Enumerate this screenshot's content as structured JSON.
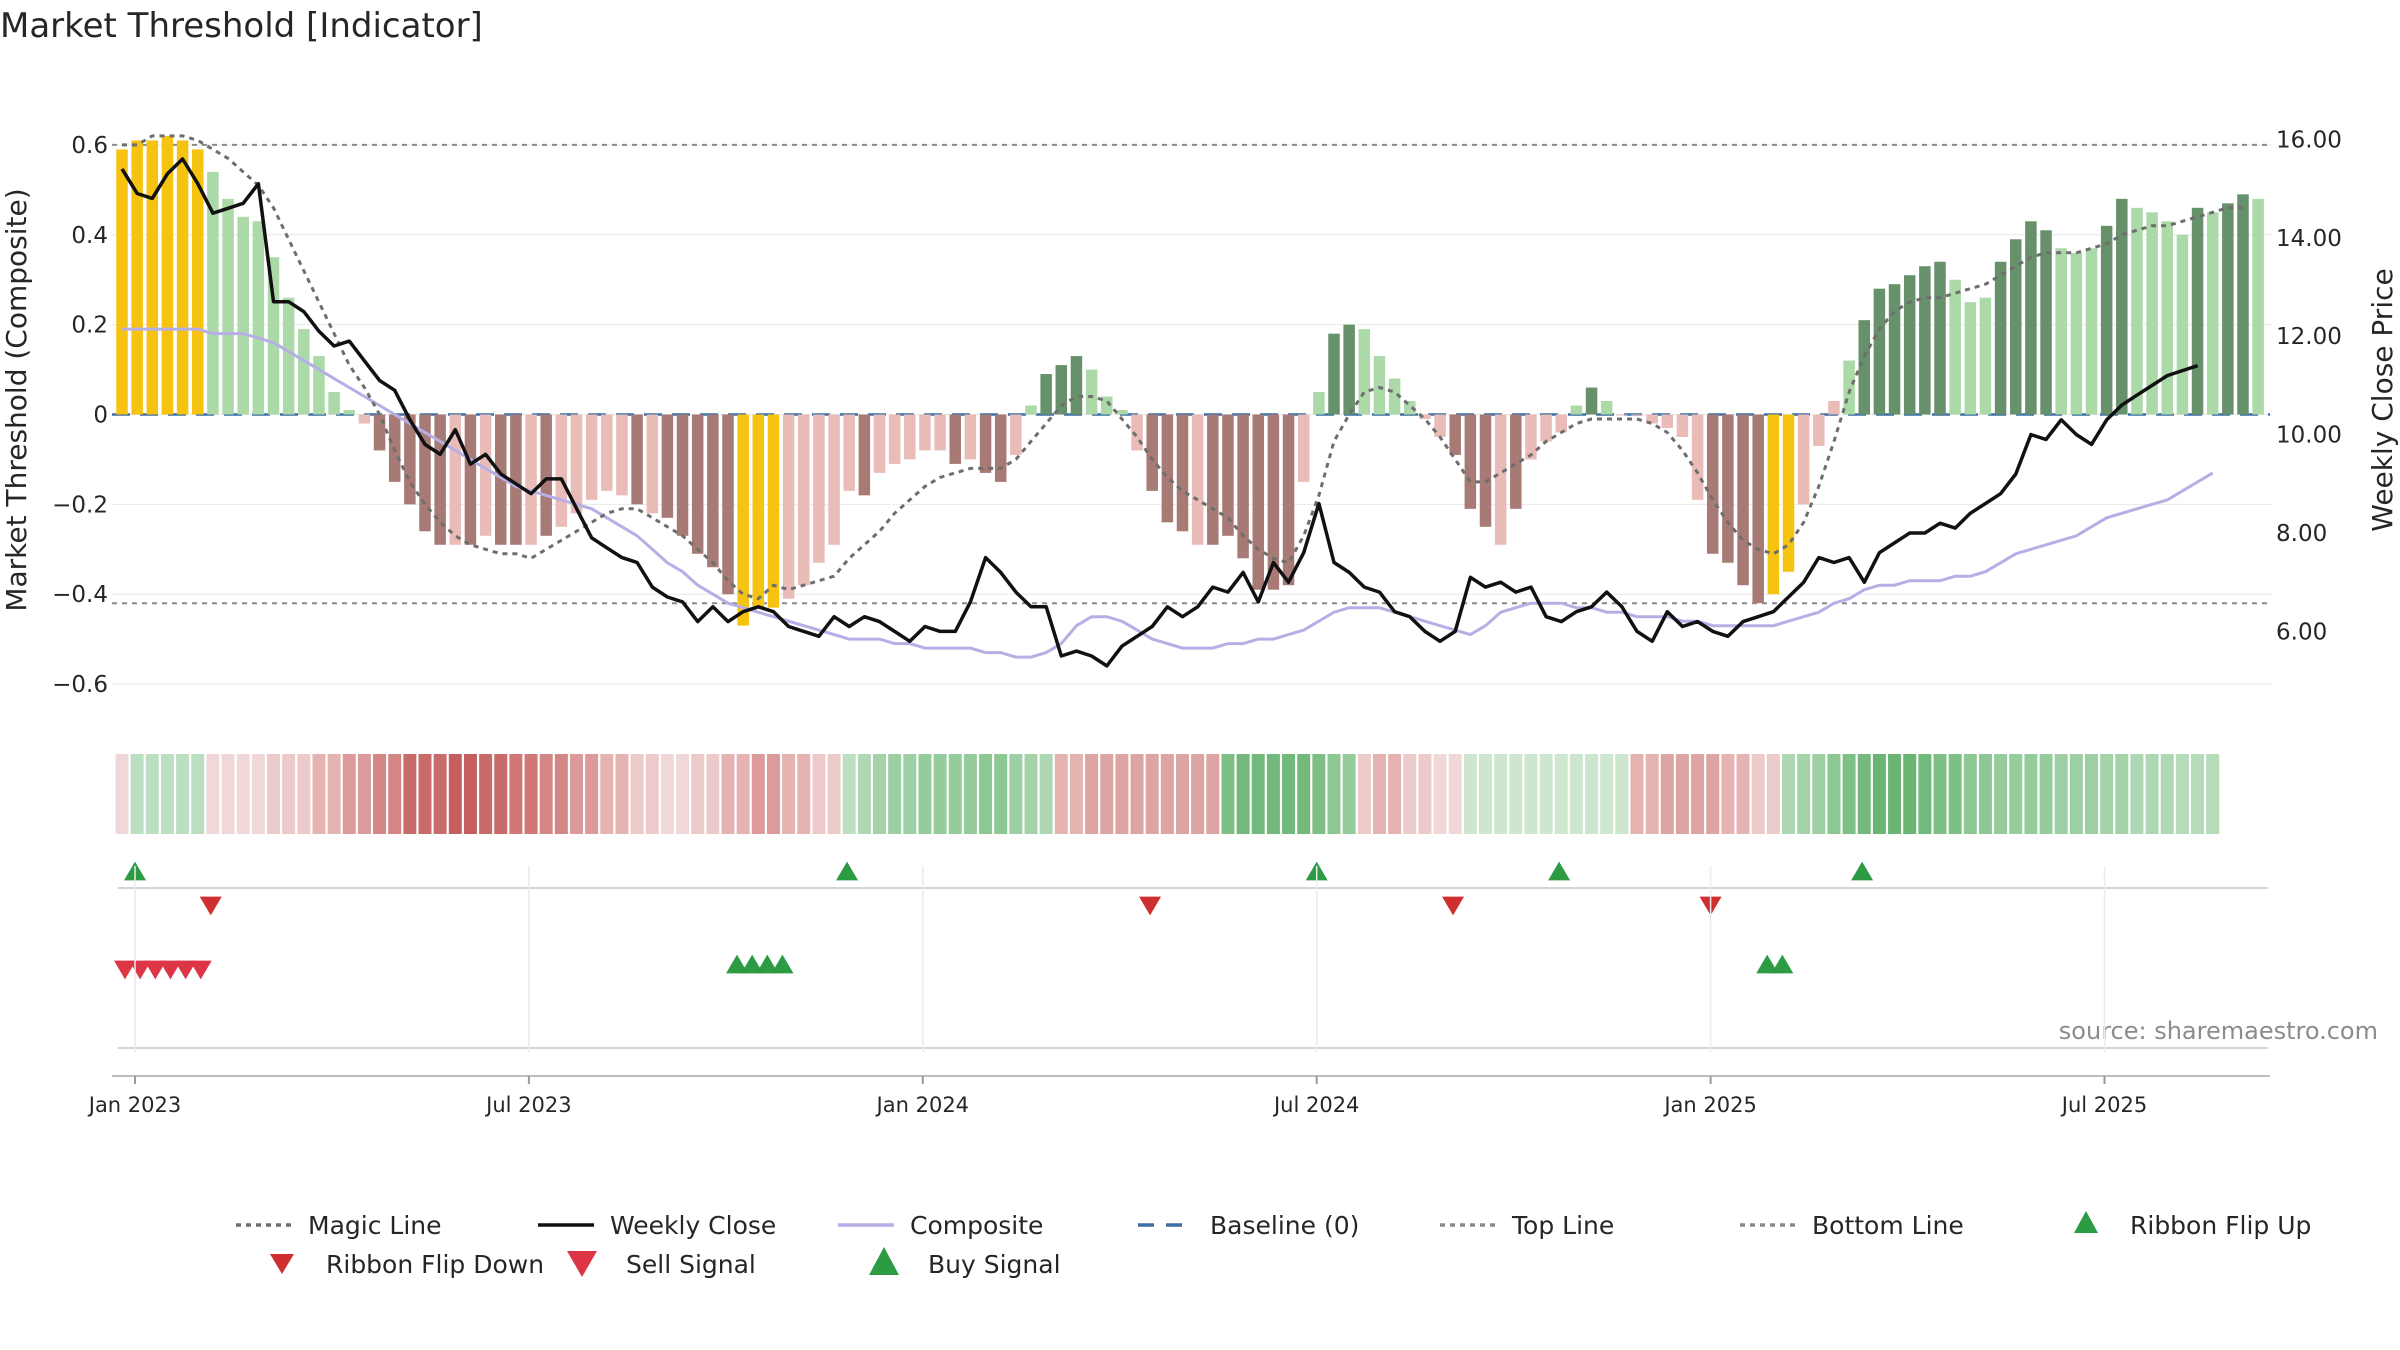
{
  "chart_data": {
    "type": "bar+line",
    "title": "Market Threshold [Indicator]",
    "source": "source: sharemaestro.com",
    "ylabel_left": "Market Threshold (Composite)",
    "ylabel_right": "Weekly Close Price",
    "ylim_left": [
      -0.68,
      0.7
    ],
    "ylim_right": [
      4.2,
      16.8
    ],
    "left_ticks": [
      0.6,
      0.4,
      0.2,
      0,
      -0.2,
      -0.4,
      -0.6
    ],
    "left_tick_labels": [
      "0.6",
      "0.4",
      "0.2",
      "0",
      "−0.2",
      "−0.4",
      "−0.6"
    ],
    "right_ticks": [
      16,
      14,
      12,
      10,
      8,
      6
    ],
    "right_tick_labels": [
      "16.00",
      "14.00",
      "12.00",
      "10.00",
      "8.00",
      "6.00"
    ],
    "x_ticks": [
      0,
      26,
      52,
      78,
      104,
      130
    ],
    "x_tick_labels": [
      "Jan 2023",
      "Jul 2023",
      "Jan 2024",
      "Jul 2024",
      "Jan 2025",
      "Jul 2025"
    ],
    "top_line": 0.6,
    "bottom_line": -0.42,
    "colors": {
      "strong_up": "#66916a",
      "weak_up": "#abd9a8",
      "strong_down": "#a87a76",
      "weak_down": "#e9bcb8",
      "extreme": "#f6c310",
      "close": "#111111",
      "composite": "#b6afe6",
      "magic": "#6e6e6e",
      "baseline": "#3b6fa5",
      "ref": "#8a8a8a",
      "up_marker": "#2c9b44",
      "down_marker": "#cf2f2f",
      "sell_marker": "#dc3545",
      "grid": "#e8e8e8"
    },
    "composite_bars": [
      0.59,
      0.61,
      0.61,
      0.62,
      0.61,
      0.59,
      0.54,
      0.48,
      0.44,
      0.43,
      0.35,
      0.26,
      0.19,
      0.13,
      0.05,
      0.01,
      -0.02,
      -0.08,
      -0.15,
      -0.2,
      -0.26,
      -0.29,
      -0.29,
      -0.29,
      -0.27,
      -0.29,
      -0.29,
      -0.29,
      -0.27,
      -0.25,
      -0.22,
      -0.19,
      -0.17,
      -0.18,
      -0.2,
      -0.22,
      -0.23,
      -0.27,
      -0.31,
      -0.34,
      -0.4,
      -0.47,
      -0.43,
      -0.43,
      -0.41,
      -0.38,
      -0.33,
      -0.29,
      -0.17,
      -0.18,
      -0.13,
      -0.11,
      -0.1,
      -0.08,
      -0.08,
      -0.11,
      -0.1,
      -0.13,
      -0.15,
      -0.09,
      0.02,
      0.09,
      0.11,
      0.13,
      0.1,
      0.04,
      0.01,
      -0.08,
      -0.17,
      -0.24,
      -0.26,
      -0.29,
      -0.29,
      -0.27,
      -0.32,
      -0.39,
      -0.39,
      -0.38,
      -0.15,
      0.05,
      0.18,
      0.2,
      0.19,
      0.13,
      0.08,
      0.03,
      -0.01,
      -0.05,
      -0.09,
      -0.21,
      -0.25,
      -0.29,
      -0.21,
      -0.1,
      -0.06,
      -0.04,
      0.02,
      0.06,
      0.03,
      0.0,
      0.0,
      -0.02,
      -0.03,
      -0.05,
      -0.19,
      -0.31,
      -0.33,
      -0.38,
      -0.42,
      -0.4,
      -0.35,
      -0.2,
      -0.07,
      0.03,
      0.12,
      0.21,
      0.28,
      0.29,
      0.31,
      0.33,
      0.34,
      0.3,
      0.25,
      0.26,
      0.34,
      0.39,
      0.43,
      0.41,
      0.37,
      0.36,
      0.37,
      0.42,
      0.48,
      0.46,
      0.45,
      0.43,
      0.4,
      0.46,
      0.45,
      0.47,
      0.49,
      0.48
    ],
    "bar_colors": [
      "Y",
      "Y",
      "Y",
      "Y",
      "Y",
      "Y",
      "W",
      "W",
      "W",
      "W",
      "W",
      "W",
      "W",
      "W",
      "W",
      "W",
      "w",
      "D",
      "D",
      "D",
      "D",
      "D",
      "w",
      "D",
      "w",
      "D",
      "D",
      "w",
      "D",
      "w",
      "w",
      "w",
      "w",
      "w",
      "D",
      "w",
      "D",
      "D",
      "D",
      "D",
      "D",
      "Y",
      "Y",
      "Y",
      "w",
      "w",
      "w",
      "w",
      "w",
      "D",
      "w",
      "w",
      "w",
      "w",
      "w",
      "D",
      "w",
      "D",
      "D",
      "w",
      "W",
      "U",
      "U",
      "U",
      "W",
      "W",
      "W",
      "w",
      "D",
      "D",
      "D",
      "w",
      "D",
      "D",
      "D",
      "D",
      "D",
      "D",
      "w",
      "W",
      "U",
      "U",
      "W",
      "W",
      "W",
      "W",
      "w",
      "w",
      "D",
      "D",
      "D",
      "w",
      "D",
      "w",
      "w",
      "w",
      "W",
      "U",
      "W",
      "w",
      "w",
      "w",
      "w",
      "w",
      "w",
      "D",
      "D",
      "D",
      "D",
      "Y",
      "Y",
      "w",
      "w",
      "w",
      "W",
      "U",
      "U",
      "U",
      "U",
      "U",
      "U",
      "W",
      "W",
      "W",
      "U",
      "U",
      "U",
      "U",
      "W",
      "W",
      "W",
      "U",
      "U",
      "W",
      "W",
      "W",
      "W",
      "U",
      "W",
      "U",
      "U",
      "W"
    ],
    "weekly_close": [
      15.4,
      14.9,
      14.8,
      15.3,
      15.6,
      15.1,
      14.5,
      14.6,
      14.7,
      15.1,
      12.7,
      12.7,
      12.5,
      12.1,
      11.8,
      11.9,
      11.5,
      11.1,
      10.9,
      10.3,
      9.8,
      9.6,
      10.1,
      9.4,
      9.6,
      9.2,
      9.0,
      8.8,
      9.1,
      9.1,
      8.5,
      7.9,
      7.7,
      7.5,
      7.4,
      6.9,
      6.7,
      6.6,
      6.2,
      6.5,
      6.2,
      6.4,
      6.5,
      6.4,
      6.1,
      6.0,
      5.9,
      6.3,
      6.1,
      6.3,
      6.2,
      6.0,
      5.8,
      6.1,
      6.0,
      6.0,
      6.6,
      7.5,
      7.2,
      6.8,
      6.5,
      6.5,
      5.5,
      5.6,
      5.5,
      5.3,
      5.7,
      5.9,
      6.1,
      6.5,
      6.3,
      6.5,
      6.9,
      6.8,
      7.2,
      6.6,
      7.4,
      7.0,
      7.6,
      8.6,
      7.4,
      7.2,
      6.9,
      6.8,
      6.4,
      6.3,
      6.0,
      5.8,
      6.0,
      7.1,
      6.9,
      7.0,
      6.8,
      6.9,
      6.3,
      6.2,
      6.4,
      6.5,
      6.8,
      6.5,
      6.0,
      5.8,
      6.4,
      6.1,
      6.2,
      6.0,
      5.9,
      6.2,
      6.3,
      6.4,
      6.7,
      7.0,
      7.5,
      7.4,
      7.5,
      7.0,
      7.6,
      7.8,
      8.0,
      8.0,
      8.2,
      8.1,
      8.4,
      8.6,
      8.8,
      9.2,
      10.0,
      9.9,
      10.3,
      10.0,
      9.8,
      10.3,
      10.6,
      10.8,
      11.0,
      11.2,
      11.3,
      11.4
    ],
    "composite_line": [
      0.19,
      0.19,
      0.19,
      0.19,
      0.19,
      0.19,
      0.18,
      0.18,
      0.18,
      0.17,
      0.16,
      0.14,
      0.12,
      0.1,
      0.08,
      0.06,
      0.04,
      0.02,
      0.0,
      -0.02,
      -0.04,
      -0.06,
      -0.08,
      -0.1,
      -0.12,
      -0.14,
      -0.16,
      -0.17,
      -0.18,
      -0.19,
      -0.2,
      -0.21,
      -0.23,
      -0.25,
      -0.27,
      -0.3,
      -0.33,
      -0.35,
      -0.38,
      -0.4,
      -0.42,
      -0.43,
      -0.44,
      -0.45,
      -0.46,
      -0.47,
      -0.48,
      -0.49,
      -0.5,
      -0.5,
      -0.5,
      -0.51,
      -0.51,
      -0.52,
      -0.52,
      -0.52,
      -0.52,
      -0.53,
      -0.53,
      -0.54,
      -0.54,
      -0.53,
      -0.51,
      -0.47,
      -0.45,
      -0.45,
      -0.46,
      -0.48,
      -0.5,
      -0.51,
      -0.52,
      -0.52,
      -0.52,
      -0.51,
      -0.51,
      -0.5,
      -0.5,
      -0.49,
      -0.48,
      -0.46,
      -0.44,
      -0.43,
      -0.43,
      -0.43,
      -0.44,
      -0.45,
      -0.46,
      -0.47,
      -0.48,
      -0.49,
      -0.47,
      -0.44,
      -0.43,
      -0.42,
      -0.42,
      -0.42,
      -0.43,
      -0.43,
      -0.44,
      -0.44,
      -0.45,
      -0.45,
      -0.45,
      -0.46,
      -0.46,
      -0.47,
      -0.47,
      -0.47,
      -0.47,
      -0.47,
      -0.46,
      -0.45,
      -0.44,
      -0.42,
      -0.41,
      -0.39,
      -0.38,
      -0.38,
      -0.37,
      -0.37,
      -0.37,
      -0.36,
      -0.36,
      -0.35,
      -0.33,
      -0.31,
      -0.3,
      -0.29,
      -0.28,
      -0.27,
      -0.25,
      -0.23,
      -0.22,
      -0.21,
      -0.2,
      -0.19,
      -0.17,
      -0.15,
      -0.13
    ],
    "magic_line": [
      0.6,
      0.6,
      0.62,
      0.62,
      0.62,
      0.61,
      0.59,
      0.57,
      0.54,
      0.51,
      0.46,
      0.39,
      0.32,
      0.25,
      0.18,
      0.11,
      0.06,
      0.0,
      -0.08,
      -0.15,
      -0.2,
      -0.24,
      -0.27,
      -0.29,
      -0.3,
      -0.31,
      -0.31,
      -0.32,
      -0.3,
      -0.28,
      -0.26,
      -0.24,
      -0.22,
      -0.21,
      -0.21,
      -0.23,
      -0.25,
      -0.27,
      -0.3,
      -0.33,
      -0.37,
      -0.4,
      -0.41,
      -0.38,
      -0.39,
      -0.38,
      -0.37,
      -0.36,
      -0.32,
      -0.29,
      -0.26,
      -0.22,
      -0.19,
      -0.16,
      -0.14,
      -0.13,
      -0.12,
      -0.12,
      -0.12,
      -0.1,
      -0.06,
      -0.02,
      0.02,
      0.04,
      0.04,
      0.03,
      -0.01,
      -0.05,
      -0.1,
      -0.14,
      -0.17,
      -0.19,
      -0.21,
      -0.23,
      -0.27,
      -0.3,
      -0.32,
      -0.33,
      -0.27,
      -0.18,
      -0.06,
      0.0,
      0.05,
      0.06,
      0.05,
      0.02,
      -0.01,
      -0.05,
      -0.1,
      -0.15,
      -0.15,
      -0.13,
      -0.11,
      -0.09,
      -0.06,
      -0.04,
      -0.02,
      -0.01,
      -0.01,
      -0.01,
      -0.01,
      -0.02,
      -0.04,
      -0.08,
      -0.13,
      -0.19,
      -0.24,
      -0.28,
      -0.3,
      -0.31,
      -0.29,
      -0.24,
      -0.16,
      -0.06,
      0.05,
      0.13,
      0.19,
      0.23,
      0.25,
      0.26,
      0.26,
      0.27,
      0.28,
      0.29,
      0.31,
      0.33,
      0.35,
      0.36,
      0.36,
      0.36,
      0.37,
      0.38,
      0.4,
      0.41,
      0.42,
      0.42,
      0.43,
      0.44,
      0.45,
      0.46,
      0.46
    ],
    "ribbon_colors": [
      "#f0d8d8",
      "#bcdfc1",
      "#bcdfc1",
      "#bcdfc1",
      "#bcdfc1",
      "#bcdfc1",
      "#f0d8d8",
      "#f0d8d8",
      "#f0d8d8",
      "#f0d8d8",
      "#eccaca",
      "#eccaca",
      "#eccaca",
      "#e6b3b3",
      "#e6b3b3",
      "#dc9a9a",
      "#dc9a9a",
      "#d48686",
      "#d48686",
      "#c96b6b",
      "#c96b6b",
      "#c96b6b",
      "#c55f5f",
      "#c55f5f",
      "#c96b6b",
      "#c96b6b",
      "#d07878",
      "#d07878",
      "#d48686",
      "#d48686",
      "#dc9a9a",
      "#dc9a9a",
      "#e6b3b3",
      "#e6b3b3",
      "#eccaca",
      "#eccaca",
      "#f0d8d8",
      "#f0d8d8",
      "#eccaca",
      "#eccaca",
      "#e6b3b3",
      "#e6b3b3",
      "#dc9a9a",
      "#dc9a9a",
      "#e6b3b3",
      "#e6b3b3",
      "#eccaca",
      "#eccaca",
      "#bcdfc1",
      "#aed8b3",
      "#a4d3aa",
      "#9ccfa3",
      "#9ccfa3",
      "#95cc9c",
      "#95cc9c",
      "#95cc9c",
      "#95cc9c",
      "#8cc794",
      "#8cc794",
      "#9ccfa3",
      "#a4d3aa",
      "#aed8b3",
      "#e6b3b3",
      "#e6b3b3",
      "#dea3a3",
      "#dea3a3",
      "#dea3a3",
      "#dea3a3",
      "#dea3a3",
      "#dea3a3",
      "#dea3a3",
      "#dea3a3",
      "#dea3a3",
      "#7ebf86",
      "#73b97c",
      "#73b97c",
      "#73b97c",
      "#73b97c",
      "#73b97c",
      "#7ebf86",
      "#8cc794",
      "#95cc9c",
      "#eccaca",
      "#e6b3b3",
      "#e6b3b3",
      "#eccaca",
      "#eccaca",
      "#f0d8d8",
      "#f0d8d8",
      "#cce6cf",
      "#cce6cf",
      "#cce6cf",
      "#cce6cf",
      "#cce6cf",
      "#cce6cf",
      "#cce6cf",
      "#cce6cf",
      "#cce6cf",
      "#cce6cf",
      "#cce6cf",
      "#e6b3b3",
      "#e6b3b3",
      "#dea3a3",
      "#dea3a3",
      "#dea3a3",
      "#dea3a3",
      "#e6b3b3",
      "#e6b3b3",
      "#eccaca",
      "#eccaca",
      "#aed8b3",
      "#a4d3aa",
      "#9ccfa3",
      "#8cc794",
      "#7ebf86",
      "#73b97c",
      "#6bb474",
      "#6bb474",
      "#6bb474",
      "#73b97c",
      "#7ebf86",
      "#7ebf86",
      "#8cc794",
      "#8cc794",
      "#95cc9c",
      "#95cc9c",
      "#95cc9c",
      "#95cc9c",
      "#9ccfa3",
      "#9ccfa3",
      "#9ccfa3",
      "#a4d3aa",
      "#a4d3aa",
      "#aed8b3",
      "#aed8b3",
      "#aed8b3",
      "#b5dbb9",
      "#b5dbb9",
      "#b5dbb9"
    ],
    "ribbon_flip_up": [
      0,
      47,
      78,
      94,
      114
    ],
    "ribbon_flip_down": [
      5,
      67,
      87,
      104
    ],
    "sell_signals": [
      0,
      1,
      2,
      3,
      4,
      5
    ],
    "buy_signals": [
      40,
      41,
      42,
      43,
      108,
      109
    ],
    "legend": [
      {
        "label": "Magic Line",
        "kind": "dotted",
        "color": "#6e6e6e"
      },
      {
        "label": "Weekly Close",
        "kind": "solid",
        "color": "#111111"
      },
      {
        "label": "Composite",
        "kind": "solid",
        "color": "#b6afe6"
      },
      {
        "label": "Baseline (0)",
        "kind": "dashed",
        "color": "#3b6fa5"
      },
      {
        "label": "Top Line",
        "kind": "dotted",
        "color": "#8a8a8a"
      },
      {
        "label": "Bottom Line",
        "kind": "dotted",
        "color": "#8a8a8a"
      },
      {
        "label": "Ribbon Flip Up",
        "kind": "tri-up",
        "color": "#2c9b44"
      },
      {
        "label": "Ribbon Flip Down",
        "kind": "tri-down",
        "color": "#cf2f2f"
      },
      {
        "label": "Sell Signal",
        "kind": "tri-down-big",
        "color": "#dc3545"
      },
      {
        "label": "Buy Signal",
        "kind": "tri-up-big",
        "color": "#2c9b44"
      }
    ]
  }
}
